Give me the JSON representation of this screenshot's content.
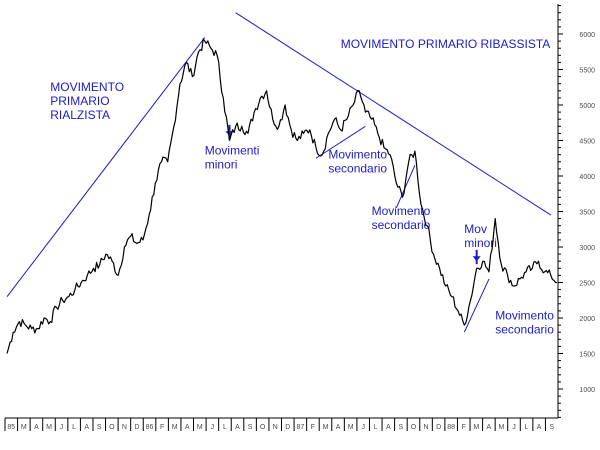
{
  "colors": {
    "background": "#ffffff",
    "price": "#000000",
    "annotation": "#1c1cc8",
    "axis": "#000000",
    "tick_label": "#4a4a4a"
  },
  "chart_data": {
    "type": "line",
    "title": "",
    "xlabel": "",
    "ylabel": "",
    "ylim": [
      0,
      6000
    ],
    "grid": false,
    "legend": "none",
    "y_ticks": [
      1000,
      1500,
      2000,
      2500,
      3000,
      3500,
      4000,
      4500,
      5000,
      5500,
      6000
    ],
    "x_tick_labels": [
      "85",
      "M",
      "A",
      "M",
      "J",
      "L",
      "A",
      "S",
      "O",
      "N",
      "D",
      "86",
      "F",
      "M",
      "A",
      "M",
      "J",
      "L",
      "A",
      "S",
      "O",
      "N",
      "D",
      "87",
      "F",
      "M",
      "A",
      "M",
      "J",
      "L",
      "A",
      "S",
      "O",
      "N",
      "D",
      "88",
      "F",
      "M",
      "A",
      "M",
      "J",
      "L",
      "A",
      "S"
    ],
    "series": [
      {
        "values": [
          1500,
          1800,
          1950,
          1900,
          1850,
          1850,
          2000,
          1950,
          2150,
          2250,
          2300,
          2400,
          2500,
          2600,
          2700,
          2750,
          2900,
          2800,
          2600,
          3000,
          3150,
          3050,
          3100,
          3450,
          3900,
          4200,
          4200,
          4700,
          5300,
          5600,
          5400,
          5750,
          5900,
          5800,
          5700,
          5100,
          4500,
          4700,
          4700,
          4600,
          4900,
          5100,
          5200,
          4800,
          4700,
          5000,
          4650,
          4500,
          4600,
          4650,
          4400,
          4300,
          4600,
          4800,
          4650,
          4800,
          5000,
          5200,
          4900,
          4800,
          4600,
          4400,
          4300,
          3900,
          3700,
          4200,
          4350,
          3600,
          3300,
          2900,
          2700,
          2450,
          2300,
          2100,
          1900,
          2250,
          2700,
          2800,
          2650,
          3400,
          2750,
          2600,
          2450,
          2550,
          2650,
          2700,
          2800,
          2650,
          2600,
          2500
        ]
      }
    ],
    "trend_lines": [
      {
        "x1": 0,
        "y1": 2300,
        "x2": 32,
        "y2": 5950
      },
      {
        "x1": 37,
        "y1": 6300,
        "x2": 88,
        "y2": 3450
      },
      {
        "x1": 50,
        "y1": 4250,
        "x2": 58,
        "y2": 4700
      },
      {
        "x1": 63,
        "y1": 3550,
        "x2": 66,
        "y2": 4150
      },
      {
        "x1": 74,
        "y1": 1800,
        "x2": 78,
        "y2": 2550
      }
    ],
    "arrows": [
      {
        "x": 36,
        "y_tip": 4560,
        "y_tail": 4720
      },
      {
        "x": 76,
        "y_tip": 2800,
        "y_tail": 2960
      }
    ],
    "annotations": [
      {
        "lines": [
          "MOVIMENTO",
          "PRIMARIO",
          "RIALZISTA"
        ],
        "x": 7,
        "y": 5200,
        "align": "left"
      },
      {
        "lines": [
          "MOVIMENTO PRIMARIO RIBASSISTA"
        ],
        "x": 54,
        "y": 5800,
        "align": "left"
      },
      {
        "lines": [
          "Movimenti",
          "minori"
        ],
        "x": 32,
        "y": 4300,
        "align": "left"
      },
      {
        "lines": [
          "Movimento",
          "secondario"
        ],
        "x": 52,
        "y": 4250,
        "align": "left"
      },
      {
        "lines": [
          "Movimento",
          "secondario"
        ],
        "x": 59,
        "y": 3450,
        "align": "left"
      },
      {
        "lines": [
          "Mov",
          "minori"
        ],
        "x": 74,
        "y": 3200,
        "align": "left"
      },
      {
        "lines": [
          "Movimento",
          "secondario"
        ],
        "x": 79,
        "y": 1980,
        "align": "left"
      }
    ]
  }
}
